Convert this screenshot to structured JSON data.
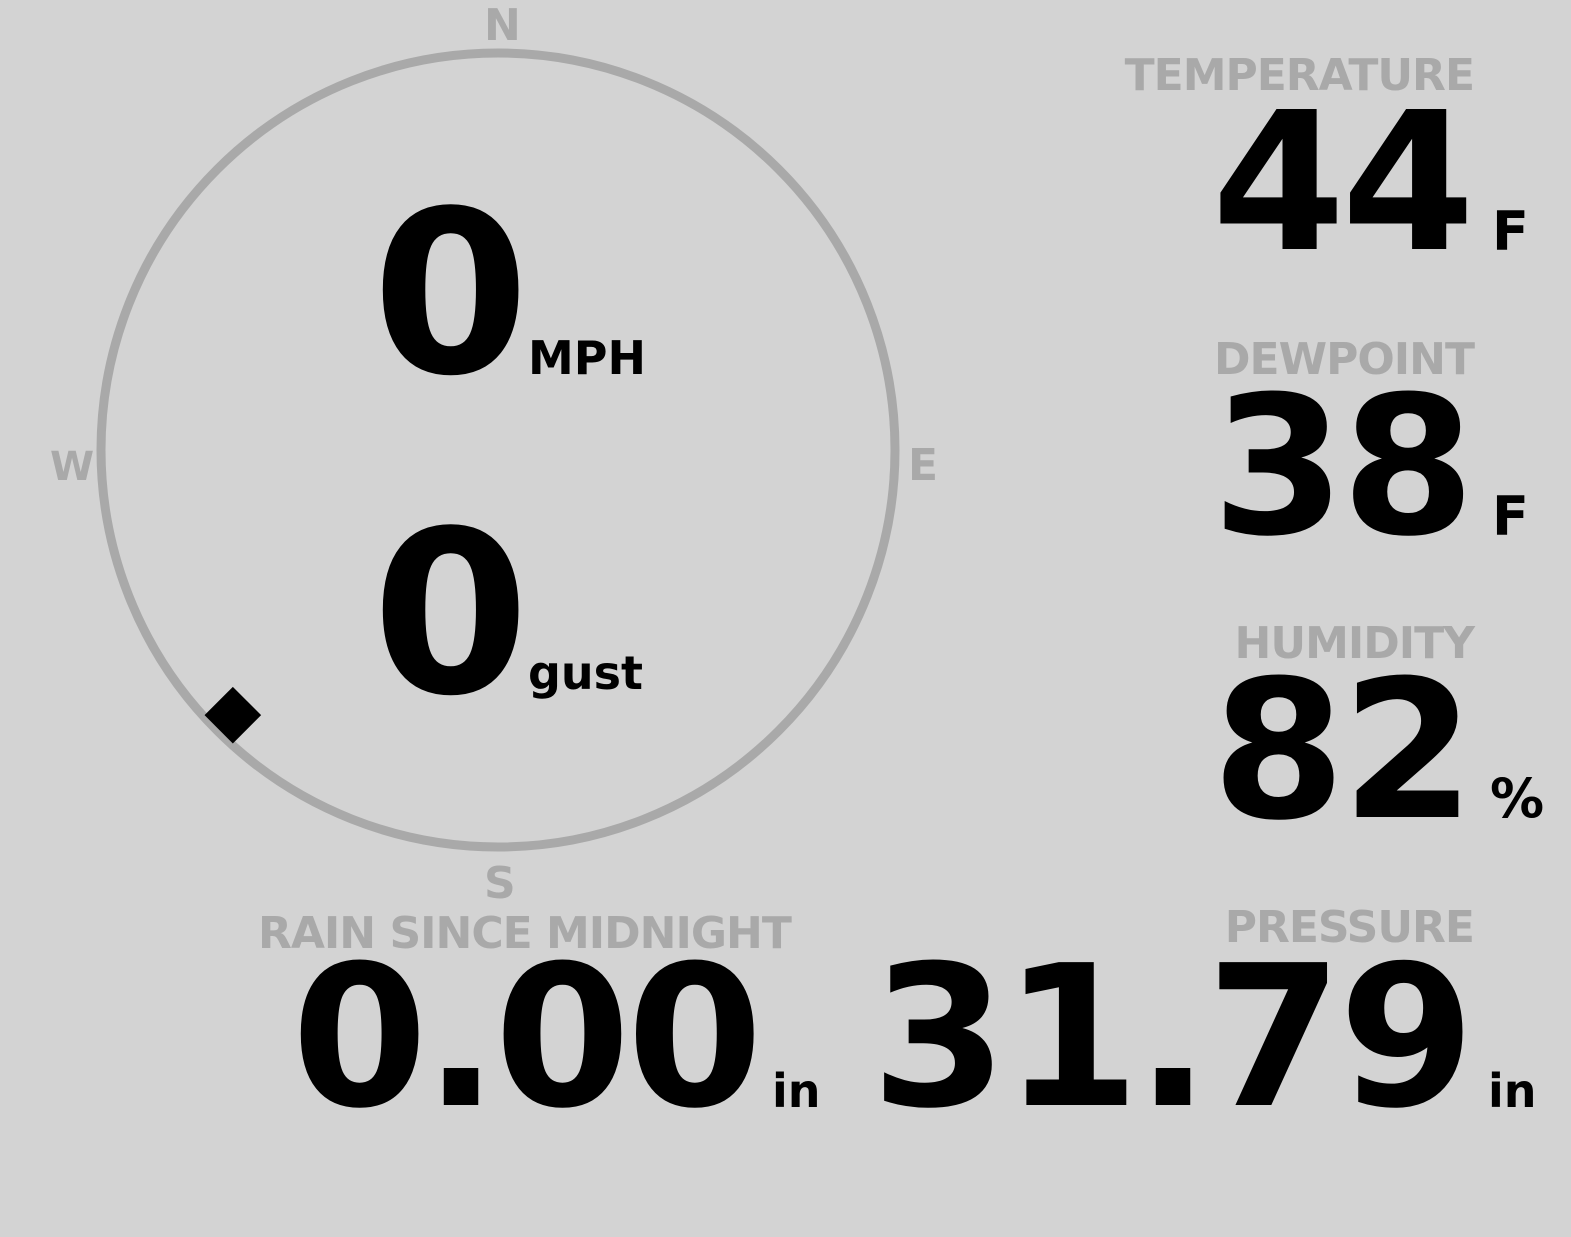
{
  "wind": {
    "compass": {
      "n": "N",
      "e": "E",
      "s": "S",
      "w": "W"
    },
    "direction_degrees": 225,
    "speed": "0",
    "speed_unit": "MPH",
    "gust": "0",
    "gust_unit": "gust"
  },
  "temperature": {
    "label": "TEMPERATURE",
    "value": "44",
    "unit": "F"
  },
  "dewpoint": {
    "label": "DEWPOINT",
    "value": "38",
    "unit": "F"
  },
  "humidity": {
    "label": "HUMIDITY",
    "value": "82",
    "unit": "%"
  },
  "rain": {
    "label": "RAIN SINCE MIDNIGHT",
    "value": "0.00",
    "unit": "in"
  },
  "pressure": {
    "label": "PRESSURE",
    "value": "31.79",
    "unit": "in"
  },
  "colors": {
    "background": "#d3d3d3",
    "label": "#a9a9a9",
    "value": "#000000"
  }
}
